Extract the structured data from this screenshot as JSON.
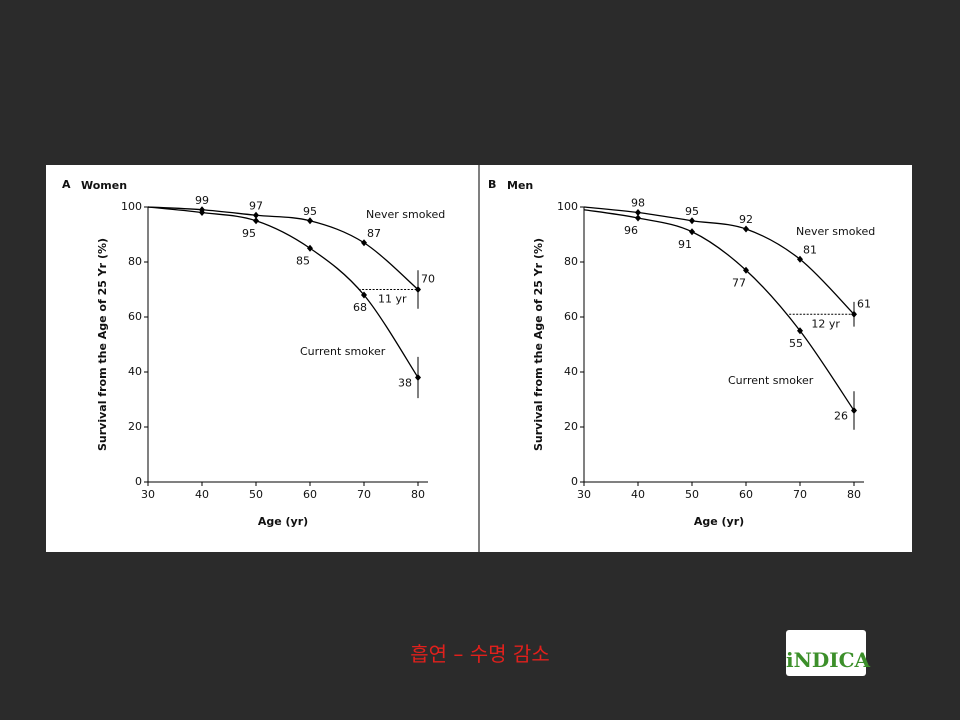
{
  "chart_data": [
    {
      "type": "line",
      "panel": "A",
      "title": "Women",
      "xlabel": "Age (yr)",
      "ylabel": "Survival from the Age of 25 Yr (%)",
      "x": [
        30,
        40,
        50,
        60,
        70,
        80
      ],
      "xlim": [
        30,
        80
      ],
      "ylim": [
        0,
        100
      ],
      "xticks": [
        30,
        40,
        50,
        60,
        70,
        80
      ],
      "yticks": [
        0,
        20,
        40,
        60,
        80,
        100
      ],
      "series": [
        {
          "name": "Never smoked",
          "color": "#000000",
          "values": [
            100,
            99,
            97,
            95,
            87,
            70
          ],
          "value_labels": [
            null,
            "99",
            "97",
            "95",
            "87",
            "70"
          ],
          "errors": [
            null,
            null,
            null,
            null,
            null,
            7
          ]
        },
        {
          "name": "Current smoker",
          "color": "#000000",
          "values": [
            100,
            98,
            95,
            85,
            68,
            38
          ],
          "value_labels": [
            null,
            null,
            "95",
            "85",
            "68",
            "38"
          ],
          "errors": [
            null,
            null,
            null,
            null,
            null,
            7.5
          ]
        }
      ],
      "gap": {
        "y": 70,
        "from": 69,
        "to": 80,
        "label": "11 yr"
      }
    },
    {
      "type": "line",
      "panel": "B",
      "title": "Men",
      "xlabel": "Age (yr)",
      "ylabel": "Survival from the Age of 25 Yr (%)",
      "x": [
        30,
        40,
        50,
        60,
        70,
        80
      ],
      "xlim": [
        30,
        80
      ],
      "ylim": [
        0,
        100
      ],
      "xticks": [
        30,
        40,
        50,
        60,
        70,
        80
      ],
      "yticks": [
        0,
        20,
        40,
        60,
        80,
        100
      ],
      "series": [
        {
          "name": "Never smoked",
          "color": "#000000",
          "values": [
            100,
            98,
            95,
            92,
            81,
            61
          ],
          "value_labels": [
            null,
            "98",
            "95",
            "92",
            "81",
            "61"
          ],
          "errors": [
            null,
            null,
            null,
            null,
            null,
            4.5
          ]
        },
        {
          "name": "Current smoker",
          "color": "#000000",
          "values": [
            99,
            96,
            91,
            77,
            55,
            26
          ],
          "value_labels": [
            null,
            "96",
            "91",
            "77",
            "55",
            "26"
          ],
          "errors": [
            null,
            null,
            null,
            null,
            null,
            7
          ]
        }
      ],
      "gap": {
        "y": 61,
        "from": 68,
        "to": 80,
        "label": "12 yr"
      }
    }
  ],
  "caption": "흡연 – 수명 감소",
  "logo": "iNDICA"
}
